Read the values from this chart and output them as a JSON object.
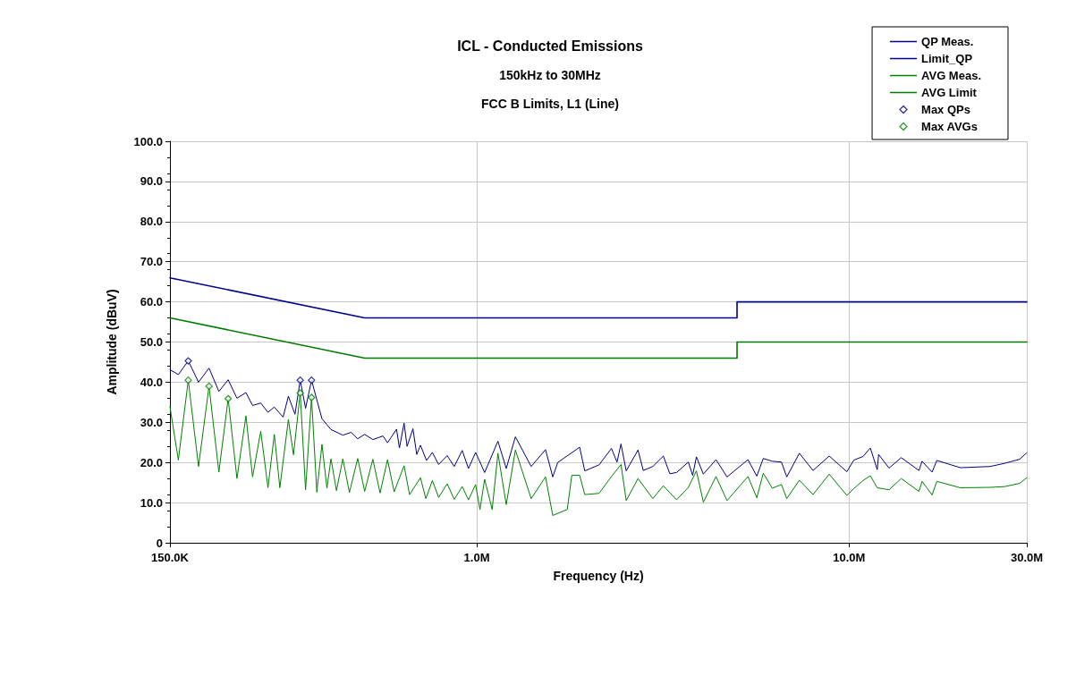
{
  "chart_data": {
    "type": "line",
    "title": "ICL - Conducted Emissions",
    "subtitle": "150kHz to 30MHz",
    "annotations": [
      "FCC B Limits, L1 (Line)"
    ],
    "xlabel": "Frequency (Hz)",
    "ylabel": "Amplitude (dBuV)",
    "log": "x",
    "grid": true,
    "legend": "top right",
    "marker": "none",
    "line_style": "solid",
    "xlim": [
      150000,
      30000000
    ],
    "ylim": [
      0,
      100
    ],
    "xticks": [
      {
        "value": 150000,
        "label": "150.0K"
      },
      {
        "value": 1000000,
        "label": "1.0M"
      },
      {
        "value": 10000000,
        "label": "10.0M"
      },
      {
        "value": 30000000,
        "label": "30.0M"
      }
    ],
    "yticks": [
      0,
      {
        "value": 10,
        "label": "10.0"
      },
      {
        "value": 20,
        "label": "20.0"
      },
      {
        "value": 30,
        "label": "30.0"
      },
      {
        "value": 40,
        "label": "40.0"
      },
      {
        "value": 50,
        "label": "50.0"
      },
      {
        "value": 60,
        "label": "60.0"
      },
      {
        "value": 70,
        "label": "70.0"
      },
      {
        "value": 80,
        "label": "80.0"
      },
      {
        "value": 90,
        "label": "90.0"
      },
      {
        "value": 100,
        "label": "100.0"
      }
    ],
    "series": [
      {
        "name": "QP Meas.",
        "color": "#000080",
        "x": [
          150000,
          158000,
          168000,
          179000,
          191000,
          203000,
          215000,
          227000,
          240000,
          250000,
          263000,
          275000,
          286000,
          302000,
          312000,
          325000,
          335700,
          347000,
          360000,
          384000,
          406000,
          437000,
          460000,
          479000,
          500000,
          526000,
          560000,
          576000,
          609000,
          620000,
          638000,
          650000,
          674000,
          690000,
          706000,
          733000,
          760000,
          790000,
          833000,
          870000,
          914000,
          950000,
          993000,
          1050000,
          1140000,
          1200000,
          1270000,
          1400000,
          1530000,
          1600000,
          1650000,
          1890000,
          1950000,
          2130000,
          2300000,
          2380000,
          2440000,
          2520000,
          2710000,
          2800000,
          2970000,
          3170000,
          3300000,
          3440000,
          3700000,
          3800000,
          3890000,
          4060000,
          4390000,
          4700000,
          5350000,
          5650000,
          5880000,
          6220000,
          6580000,
          6800000,
          7350000,
          8000000,
          8840000,
          9860000,
          10300000,
          10900000,
          11400000,
          11900000,
          12000000,
          12800000,
          13800000,
          15400000,
          15700000,
          16700000,
          17200000,
          19900000,
          23900000,
          26200000,
          28700000,
          30000000
        ],
        "values": [
          43.1,
          41.9,
          45.3,
          40.0,
          43.5,
          37.7,
          40.6,
          36.0,
          37.4,
          34.2,
          34.8,
          32.5,
          33.8,
          31.3,
          36.5,
          32.0,
          40.5,
          33.5,
          40.5,
          30.9,
          28.2,
          26.8,
          27.5,
          25.9,
          27.0,
          25.7,
          26.6,
          24.9,
          28.3,
          23.6,
          29.8,
          24.0,
          28.4,
          22.0,
          24.3,
          20.5,
          22.5,
          19.5,
          21.7,
          19.0,
          23.0,
          18.5,
          22.5,
          17.5,
          25.3,
          18.5,
          26.4,
          19.0,
          23.2,
          16.4,
          20.0,
          23.8,
          17.9,
          19.4,
          23.5,
          20.1,
          24.6,
          17.9,
          23.1,
          18.0,
          19.0,
          21.6,
          17.2,
          17.5,
          20.1,
          16.8,
          21.4,
          17.1,
          20.7,
          16.4,
          20.7,
          16.6,
          21.0,
          20.3,
          20.1,
          16.4,
          22.3,
          18.0,
          21.6,
          17.7,
          20.6,
          21.5,
          23.6,
          18.2,
          22.0,
          18.6,
          21.2,
          18.0,
          20.3,
          17.6,
          20.5,
          18.7,
          19.0,
          19.8,
          20.8,
          22.4
        ]
      },
      {
        "name": "Limit_QP",
        "color": "#00008b",
        "x": [
          150000,
          500000,
          5000000,
          5000000,
          30000000
        ],
        "values": [
          66,
          56,
          56,
          60,
          60
        ]
      },
      {
        "name": "AVG Meas.",
        "color": "#008000",
        "x": [
          150000,
          158000,
          168000,
          179000,
          191000,
          203000,
          215000,
          227000,
          240000,
          250000,
          263000,
          275000,
          286000,
          296000,
          312000,
          322000,
          335700,
          347000,
          360000,
          372000,
          384000,
          396000,
          406000,
          420000,
          437000,
          455000,
          479000,
          500000,
          526000,
          550000,
          576000,
          600000,
          638000,
          660000,
          706000,
          730000,
          760000,
          790000,
          833000,
          870000,
          914000,
          950000,
          993000,
          1020000,
          1050000,
          1100000,
          1140000,
          1200000,
          1270000,
          1400000,
          1530000,
          1600000,
          1750000,
          1800000,
          1890000,
          1950000,
          2130000,
          2300000,
          2440000,
          2520000,
          2710000,
          2970000,
          3170000,
          3440000,
          3700000,
          3890000,
          4060000,
          4390000,
          4700000,
          5350000,
          5650000,
          5880000,
          6220000,
          6580000,
          6800000,
          7350000,
          8000000,
          8840000,
          9860000,
          10300000,
          10900000,
          11400000,
          11900000,
          12800000,
          13800000,
          15400000,
          15700000,
          16700000,
          17200000,
          19900000,
          23900000,
          26200000,
          28700000,
          30000000
        ],
        "values": [
          33.9,
          20.6,
          40.5,
          19.0,
          39.0,
          17.6,
          35.9,
          16.0,
          31.6,
          16.4,
          27.8,
          13.7,
          27.0,
          13.7,
          30.7,
          21.9,
          37.3,
          13.2,
          36.2,
          12.6,
          24.5,
          13.6,
          20.9,
          13.0,
          20.9,
          12.5,
          21.0,
          12.8,
          20.8,
          12.4,
          20.7,
          12.7,
          19.2,
          12.0,
          16.2,
          11.0,
          15.5,
          11.3,
          14.7,
          10.8,
          14.0,
          10.7,
          14.5,
          8.3,
          15.8,
          8.3,
          22.3,
          9.5,
          23.1,
          11.0,
          16.4,
          6.8,
          8.3,
          16.8,
          16.8,
          12.0,
          12.3,
          16.5,
          19.5,
          10.5,
          16.0,
          11.0,
          14.2,
          10.7,
          13.8,
          17.9,
          10.1,
          16.5,
          10.5,
          16.5,
          11.2,
          17.3,
          13.6,
          14.5,
          11.0,
          15.6,
          12.0,
          17.1,
          11.8,
          13.5,
          15.5,
          16.7,
          13.7,
          13.2,
          16.0,
          12.8,
          15.3,
          11.9,
          15.3,
          13.7,
          13.8,
          14.0,
          14.8,
          16.2
        ]
      },
      {
        "name": "AVG Limit",
        "color": "#007a00",
        "x": [
          150000,
          500000,
          5000000,
          5000000,
          30000000
        ],
        "values": [
          56,
          46,
          46,
          50,
          50
        ]
      },
      {
        "name": "Max QPs",
        "type": "scatter",
        "marker": "diamond",
        "color": "#000080",
        "x": [
          168000,
          335700,
          360000
        ],
        "values": [
          45.3,
          40.5,
          40.5
        ]
      },
      {
        "name": "Max AVGs",
        "type": "scatter",
        "marker": "diamond",
        "color": "#008000",
        "x": [
          168000,
          191000,
          215000,
          335700,
          360000
        ],
        "values": [
          40.5,
          39.0,
          35.9,
          37.3,
          36.2
        ]
      }
    ]
  }
}
